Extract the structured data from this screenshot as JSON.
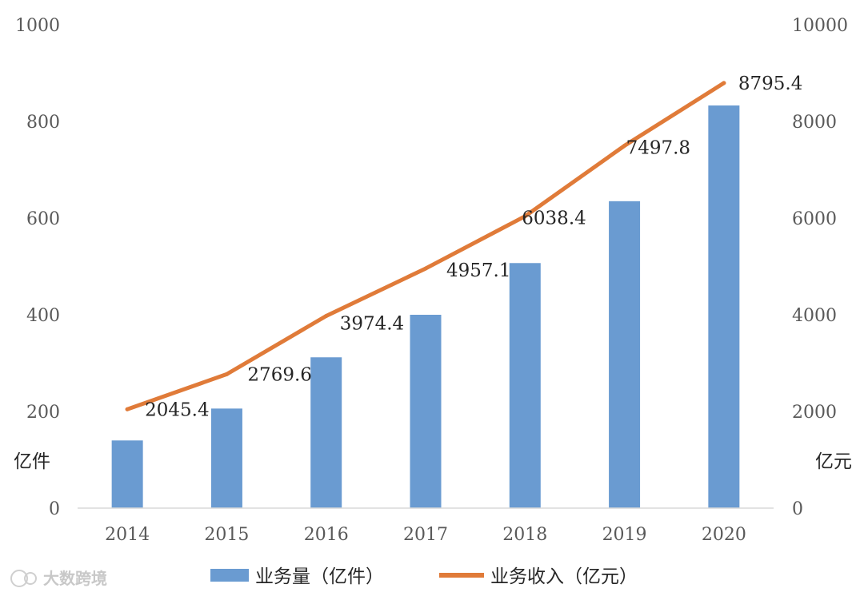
{
  "chart_data": {
    "type": "bar",
    "categories": [
      "2014",
      "2015",
      "2016",
      "2017",
      "2018",
      "2019",
      "2020"
    ],
    "series": [
      {
        "name": "业务量（亿件）",
        "type": "bar",
        "axis": "left",
        "color": "#6A9BD1",
        "values": [
          140,
          206,
          312,
          400,
          507,
          635,
          833
        ]
      },
      {
        "name": "业务收入（亿元）",
        "type": "line",
        "axis": "right",
        "color": "#E07B39",
        "values": [
          2045.4,
          2769.6,
          3974.4,
          4957.1,
          6038.4,
          7497.8,
          8795.4
        ],
        "data_labels": [
          "2045.4",
          "2769.6",
          "3974.4",
          "4957.1",
          "6038.4",
          "7497.8",
          "8795.4"
        ]
      }
    ],
    "y_left": {
      "unit": "亿件",
      "ylim": [
        0,
        1000
      ],
      "ticks": [
        "0",
        "200",
        "400",
        "600",
        "800",
        "1000"
      ]
    },
    "y_right": {
      "unit": "亿元",
      "ylim": [
        0,
        10000
      ],
      "ticks": [
        "0",
        "2000",
        "4000",
        "6000",
        "8000",
        "10000"
      ]
    },
    "grid": false,
    "legend_position": "bottom"
  },
  "watermark": "大数跨境"
}
